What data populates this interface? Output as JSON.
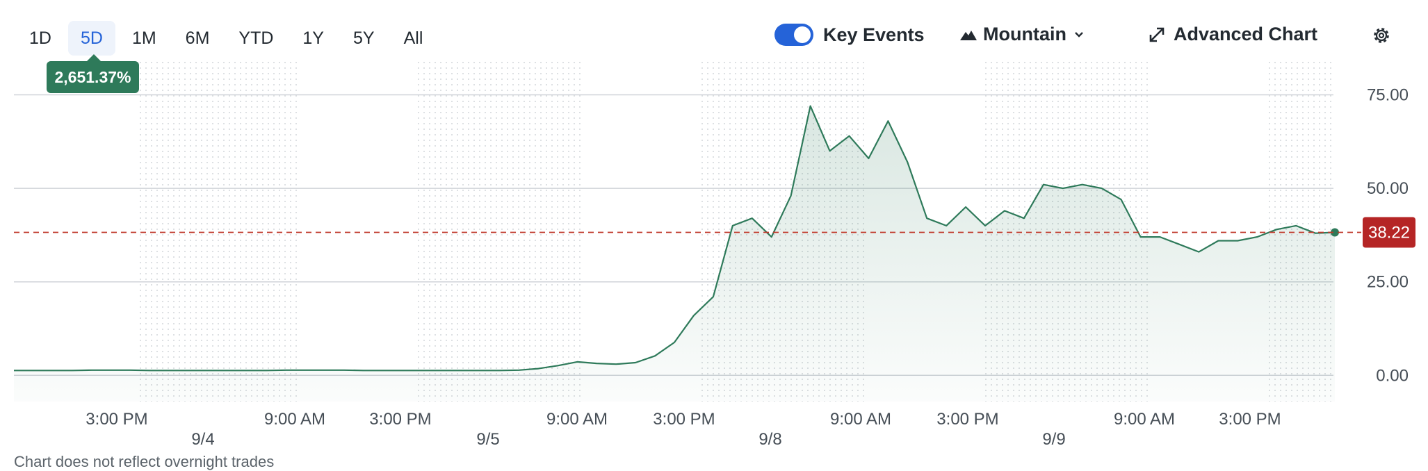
{
  "toolbar": {
    "ranges": [
      "1D",
      "5D",
      "1M",
      "6M",
      "YTD",
      "1Y",
      "5Y",
      "All"
    ],
    "active_range": "5D",
    "key_events_label": "Key Events",
    "chart_type_label": "Mountain",
    "advanced_chart_label": "Advanced Chart",
    "icons": [
      "toggle-icon",
      "mountain-icon",
      "chevron-down-icon",
      "expand-icon",
      "gear-icon"
    ]
  },
  "badges": {
    "percent_change": "2,651.37%",
    "last_price": "38.22"
  },
  "colors": {
    "line": "#2e7a5a",
    "accent": "#2563d8",
    "reference": "#c0392b",
    "price_badge": "#b52525"
  },
  "chart_data": {
    "type": "area",
    "title": "",
    "xlabel": "",
    "ylabel": "",
    "ylim": [
      -7,
      84
    ],
    "y_ticks": [
      0,
      25,
      50,
      75
    ],
    "y_tick_labels": [
      "0.00",
      "25.00",
      "50.00",
      "75.00"
    ],
    "x_time_labels": [
      "3:00 PM",
      "9:00 AM",
      "3:00 PM",
      "9:00 AM",
      "3:00 PM",
      "9:00 AM",
      "3:00 PM",
      "9:00 AM",
      "3:00 PM"
    ],
    "x_date_labels": [
      "9/4",
      "9/5",
      "9/8",
      "9/9"
    ],
    "reference_line": {
      "value": 38.22,
      "label": "38.22"
    },
    "grid": true,
    "series": [
      {
        "values": [
          1.3,
          1.3,
          1.3,
          1.3,
          1.4,
          1.4,
          1.4,
          1.3,
          1.3,
          1.3,
          1.3,
          1.3,
          1.3,
          1.3,
          1.4,
          1.4,
          1.4,
          1.4,
          1.3,
          1.3,
          1.3,
          1.3,
          1.3,
          1.3,
          1.3,
          1.3,
          1.4,
          1.8,
          2.6,
          3.6,
          3.2,
          3.0,
          3.4,
          5.2,
          8.8,
          16,
          21,
          40,
          42,
          37,
          48,
          72,
          60,
          64,
          58,
          68,
          57,
          42,
          40,
          45,
          40,
          44,
          42,
          51,
          50,
          51,
          50,
          47,
          37,
          37,
          35,
          33,
          36,
          36,
          37,
          39,
          40,
          38,
          38.22
        ]
      }
    ]
  },
  "footnote": "Chart does not reflect overnight trades"
}
